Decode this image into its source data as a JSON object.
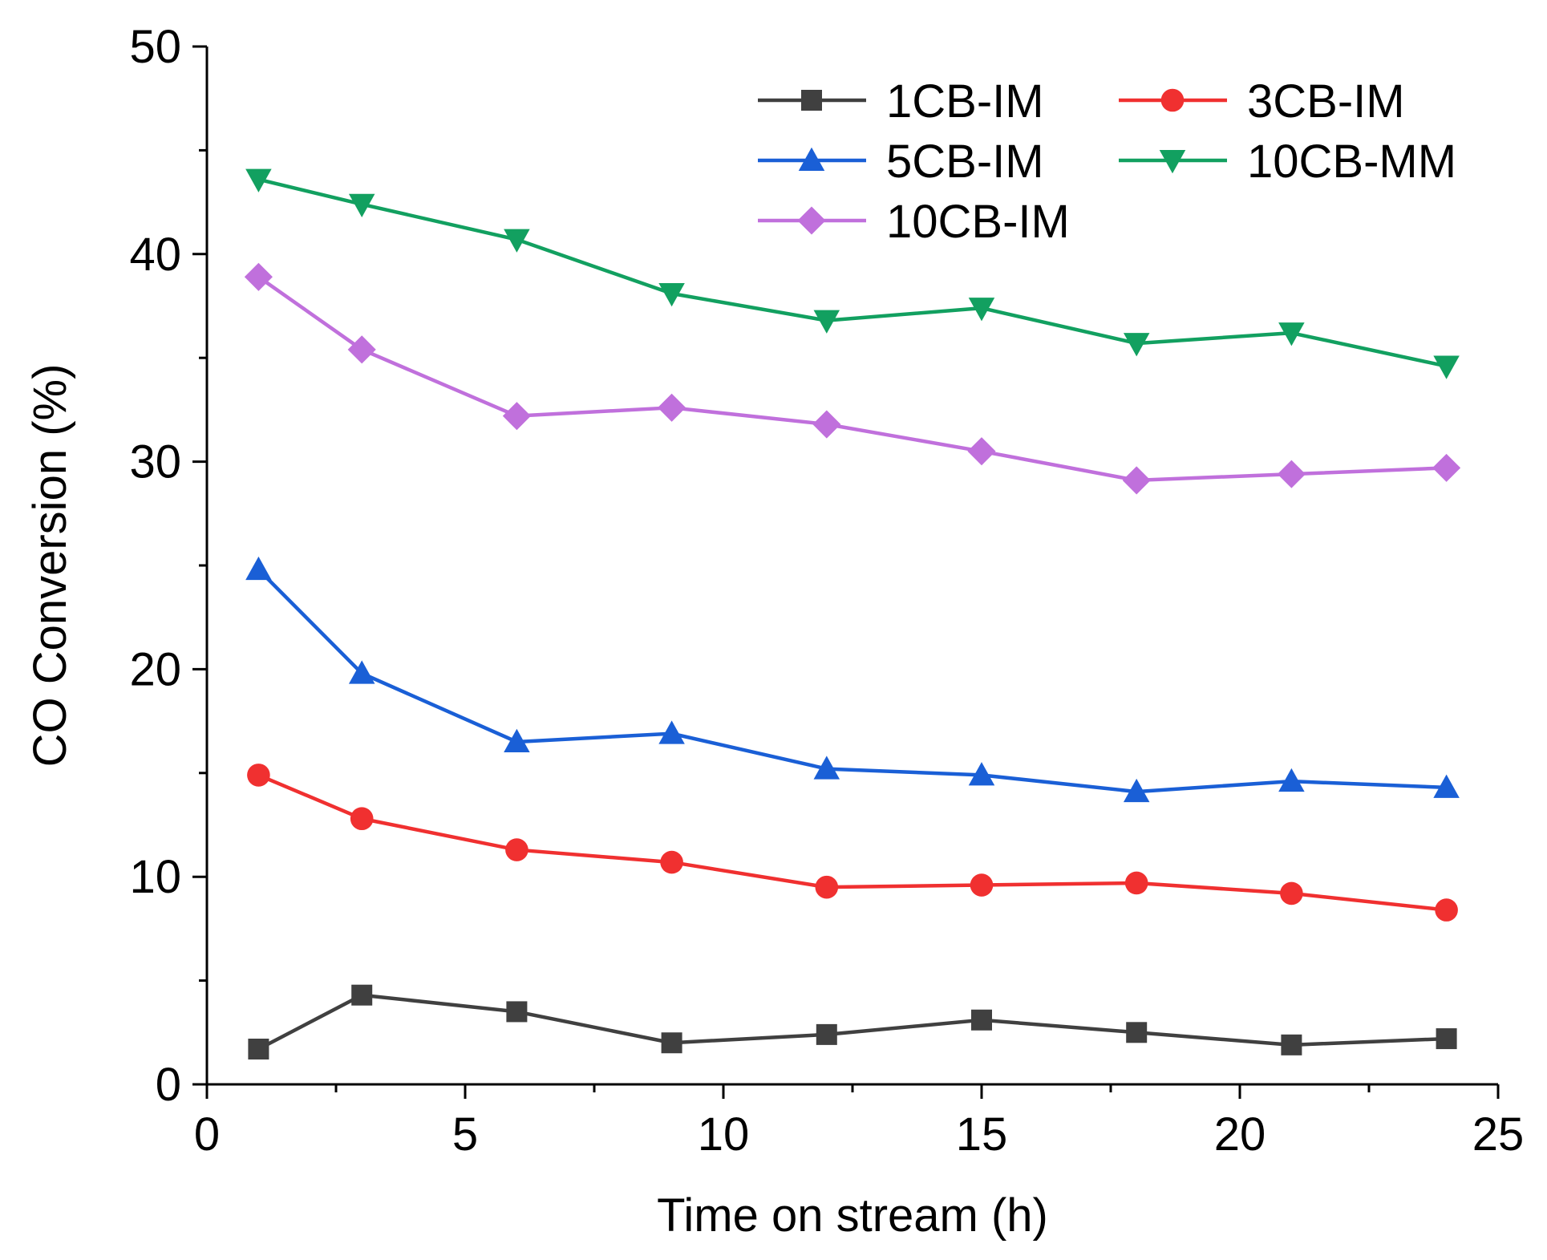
{
  "chart_data": {
    "type": "line",
    "xlabel": "Time on stream (h)",
    "ylabel": "CO Conversion (%)",
    "xlim": [
      0,
      25
    ],
    "ylim": [
      0,
      50
    ],
    "xticks": [
      0,
      5,
      10,
      15,
      20,
      25
    ],
    "yticks": [
      0,
      10,
      20,
      30,
      40,
      50
    ],
    "grid": false,
    "legend_position": "top-right",
    "x": [
      1,
      3,
      6,
      9,
      12,
      15,
      18,
      21,
      24
    ],
    "series": [
      {
        "name": "1CB-IM",
        "color": "#404040",
        "marker": "square",
        "values": [
          1.7,
          4.3,
          3.5,
          2.0,
          2.4,
          3.1,
          2.5,
          1.9,
          2.2
        ]
      },
      {
        "name": "3CB-IM",
        "color": "#f03030",
        "marker": "circle",
        "values": [
          14.9,
          12.8,
          11.3,
          10.7,
          9.5,
          9.6,
          9.7,
          9.2,
          8.4
        ]
      },
      {
        "name": "5CB-IM",
        "color": "#1a5fd6",
        "marker": "triangle-up",
        "values": [
          24.8,
          19.8,
          16.5,
          16.9,
          15.2,
          14.9,
          14.1,
          14.6,
          14.3
        ]
      },
      {
        "name": "10CB-MM",
        "color": "#12a060",
        "marker": "triangle-down",
        "values": [
          43.6,
          42.4,
          40.7,
          38.1,
          36.8,
          37.4,
          35.7,
          36.2,
          34.6
        ]
      },
      {
        "name": "10CB-IM",
        "color": "#c070dc",
        "marker": "diamond",
        "values": [
          38.9,
          35.4,
          32.2,
          32.6,
          31.8,
          30.5,
          29.1,
          29.4,
          29.7
        ]
      }
    ]
  }
}
